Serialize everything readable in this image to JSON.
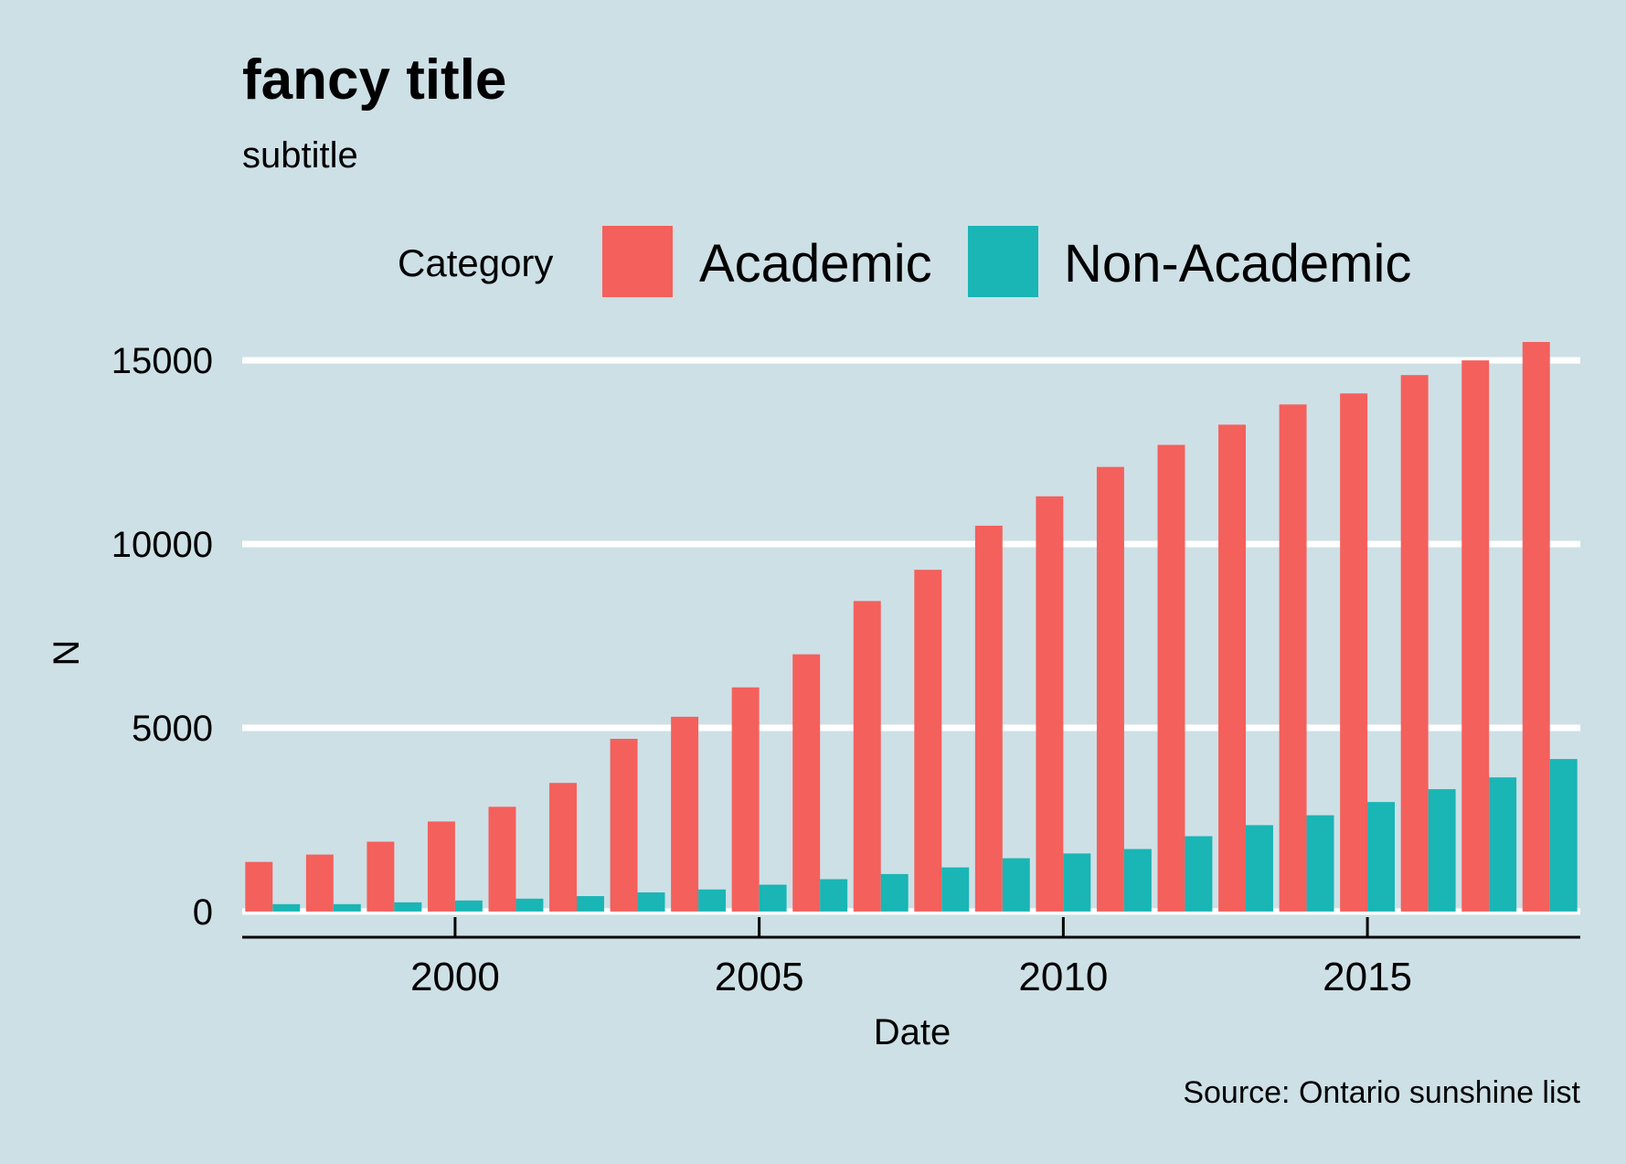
{
  "chart_data": {
    "type": "bar",
    "title": "fancy title",
    "subtitle": "subtitle",
    "caption": "Source: Ontario sunshine list",
    "xlabel": "Date",
    "ylabel": "N",
    "legend": {
      "title": "Category",
      "position": "top"
    },
    "x": [
      1997,
      1998,
      1999,
      2000,
      2001,
      2002,
      2003,
      2004,
      2005,
      2006,
      2007,
      2008,
      2009,
      2010,
      2011,
      2012,
      2013,
      2014,
      2015,
      2016,
      2017,
      2018
    ],
    "xticks": [
      2000,
      2005,
      2010,
      2015
    ],
    "xlim": [
      1996.5,
      2018.5
    ],
    "yticks": [
      0,
      5000,
      10000,
      15000
    ],
    "ylim": [
      -700,
      15600
    ],
    "grid": "horizontal-major",
    "series": [
      {
        "name": "Academic",
        "color": "#f4605c",
        "values": [
          1350,
          1550,
          1900,
          2450,
          2850,
          3500,
          4700,
          5300,
          6100,
          7000,
          8450,
          9300,
          10500,
          11300,
          12100,
          12700,
          13250,
          13800,
          14100,
          14600,
          15000,
          15500
        ]
      },
      {
        "name": "Non-Academic",
        "color": "#1ab5b5",
        "values": [
          200,
          200,
          250,
          300,
          350,
          420,
          520,
          600,
          730,
          880,
          1020,
          1200,
          1450,
          1580,
          1700,
          2050,
          2350,
          2620,
          2980,
          3330,
          3650,
          4150
        ]
      }
    ]
  }
}
